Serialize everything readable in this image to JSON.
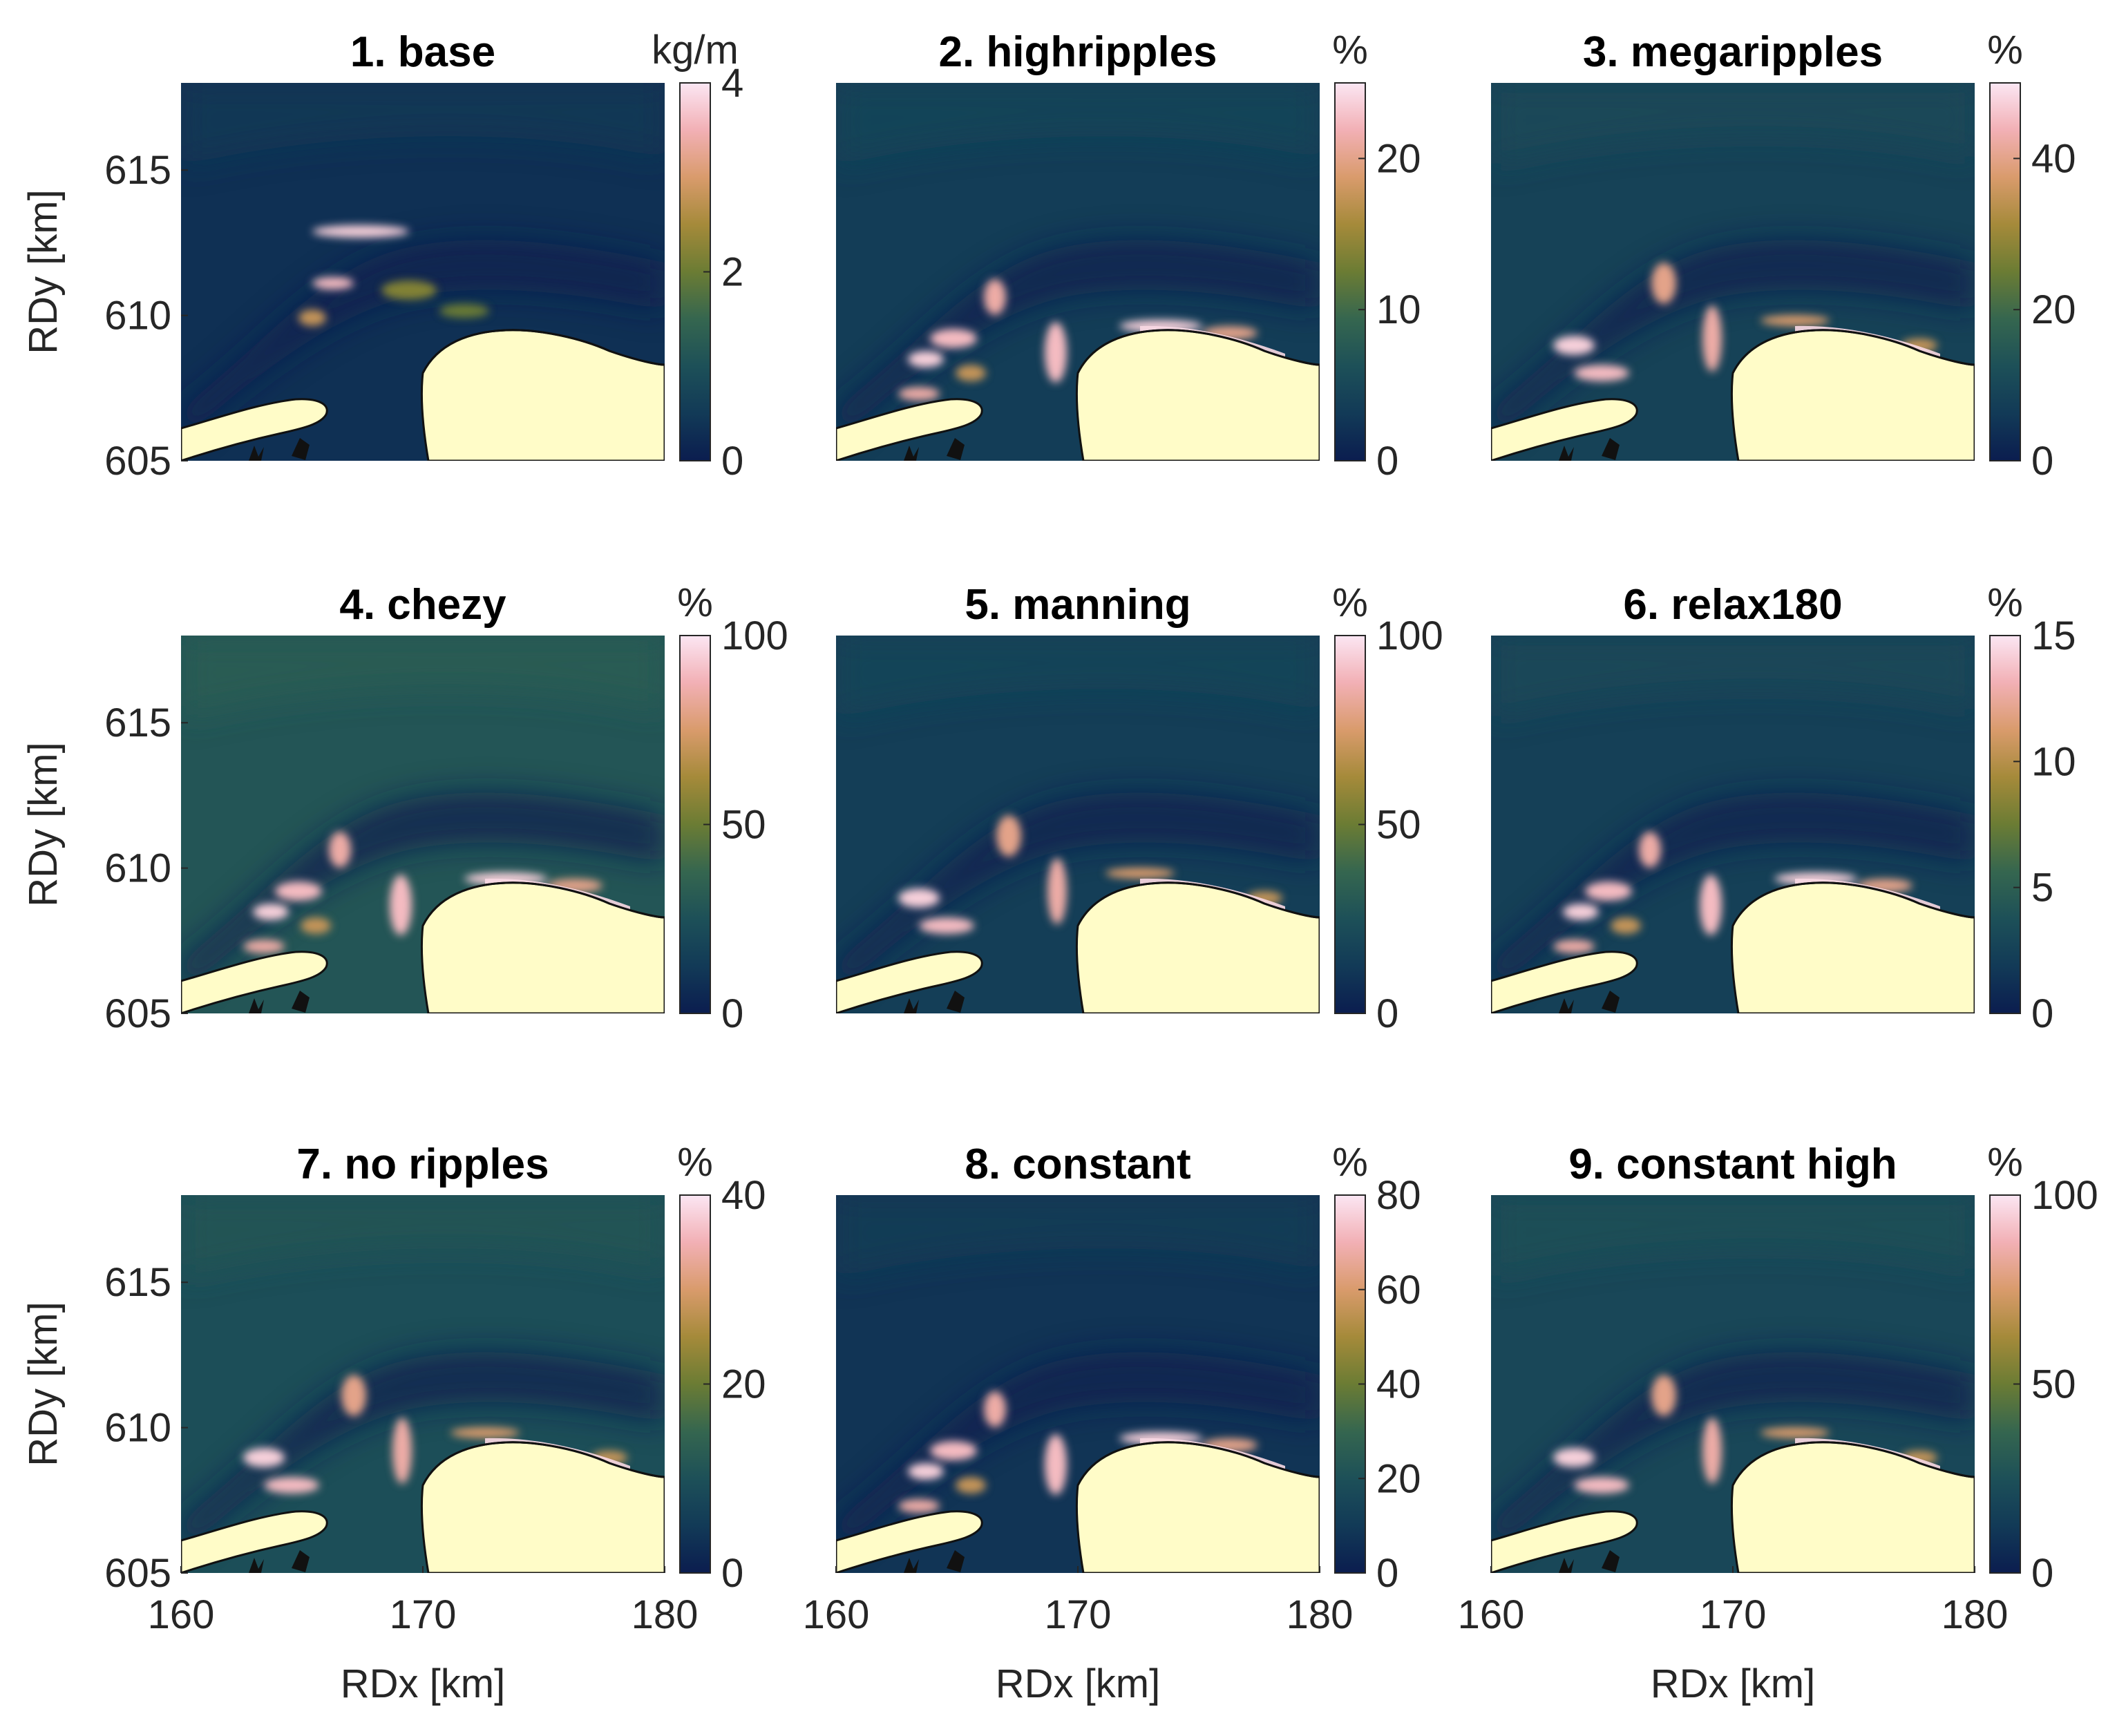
{
  "colors": {
    "cmap_stops": [
      "#0b1d4f",
      "#123a57",
      "#1d5058",
      "#35664f",
      "#6b7c34",
      "#a58a3a",
      "#d99b6c",
      "#f2b0b5",
      "#fbe6f3"
    ],
    "land": "#fffcc8",
    "outline": "#111111",
    "background": "#ffffff"
  },
  "chart_data": [
    {
      "type": "heatmap",
      "title": "1. base",
      "unit": "kg/m",
      "clim": [
        0,
        4
      ],
      "cbar_ticks": [
        0,
        2,
        4
      ],
      "xlim": [
        160,
        180
      ],
      "ylim": [
        605,
        618
      ],
      "x_ticks": [],
      "y_ticks": [
        605,
        610,
        615
      ],
      "xlabel": "",
      "ylabel": "RDy [km]"
    },
    {
      "type": "heatmap",
      "title": "2. highripples",
      "unit": "%",
      "clim": [
        0,
        25
      ],
      "cbar_ticks": [
        0,
        10,
        20
      ],
      "xlim": [
        160,
        180
      ],
      "ylim": [
        605,
        618
      ],
      "x_ticks": [],
      "y_ticks": [],
      "xlabel": "",
      "ylabel": ""
    },
    {
      "type": "heatmap",
      "title": "3. megaripples",
      "unit": "%",
      "clim": [
        0,
        50
      ],
      "cbar_ticks": [
        0,
        20,
        40
      ],
      "xlim": [
        160,
        180
      ],
      "ylim": [
        605,
        618
      ],
      "x_ticks": [],
      "y_ticks": [],
      "xlabel": "",
      "ylabel": ""
    },
    {
      "type": "heatmap",
      "title": "4. chezy",
      "unit": "%",
      "clim": [
        0,
        100
      ],
      "cbar_ticks": [
        0,
        50,
        100
      ],
      "xlim": [
        160,
        180
      ],
      "ylim": [
        605,
        618
      ],
      "x_ticks": [],
      "y_ticks": [
        605,
        610,
        615
      ],
      "xlabel": "",
      "ylabel": "RDy [km]"
    },
    {
      "type": "heatmap",
      "title": "5. manning",
      "unit": "%",
      "clim": [
        0,
        100
      ],
      "cbar_ticks": [
        0,
        50,
        100
      ],
      "xlim": [
        160,
        180
      ],
      "ylim": [
        605,
        618
      ],
      "x_ticks": [],
      "y_ticks": [],
      "xlabel": "",
      "ylabel": ""
    },
    {
      "type": "heatmap",
      "title": "6. relax180",
      "unit": "%",
      "clim": [
        0,
        15
      ],
      "cbar_ticks": [
        0,
        5,
        10,
        15
      ],
      "xlim": [
        160,
        180
      ],
      "ylim": [
        605,
        618
      ],
      "x_ticks": [],
      "y_ticks": [],
      "xlabel": "",
      "ylabel": ""
    },
    {
      "type": "heatmap",
      "title": "7. no ripples",
      "unit": "%",
      "clim": [
        0,
        40
      ],
      "cbar_ticks": [
        0,
        20,
        40
      ],
      "xlim": [
        160,
        180
      ],
      "ylim": [
        605,
        618
      ],
      "x_ticks": [
        160,
        170,
        180
      ],
      "y_ticks": [
        605,
        610,
        615
      ],
      "xlabel": "RDx [km]",
      "ylabel": "RDy [km]"
    },
    {
      "type": "heatmap",
      "title": "8. constant",
      "unit": "%",
      "clim": [
        0,
        80
      ],
      "cbar_ticks": [
        0,
        20,
        40,
        60,
        80
      ],
      "xlim": [
        160,
        180
      ],
      "ylim": [
        605,
        618
      ],
      "x_ticks": [
        160,
        170,
        180
      ],
      "y_ticks": [],
      "xlabel": "RDx [km]",
      "ylabel": ""
    },
    {
      "type": "heatmap",
      "title": "9. constant high",
      "unit": "%",
      "clim": [
        0,
        100
      ],
      "cbar_ticks": [
        0,
        50,
        100
      ],
      "xlim": [
        160,
        180
      ],
      "ylim": [
        605,
        618
      ],
      "x_ticks": [
        160,
        170,
        180
      ],
      "y_ticks": [],
      "xlabel": "RDx [km]",
      "ylabel": ""
    }
  ]
}
